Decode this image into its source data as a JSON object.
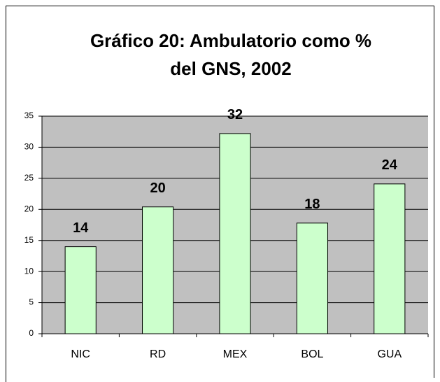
{
  "chart_data": {
    "type": "bar",
    "title": "Gráfico 20: Ambulatorio como % del GNS, 2002",
    "categories": [
      "NIC",
      "RD",
      "MEX",
      "BOL",
      "GUA"
    ],
    "values": [
      14,
      20.4,
      32.2,
      17.8,
      24.1
    ],
    "value_labels": [
      "14",
      "20",
      "32",
      "18",
      "24"
    ],
    "color": "#ccffcc",
    "ylim": [
      0,
      35
    ],
    "yticks": [
      0,
      5,
      10,
      15,
      20,
      25,
      30,
      35
    ],
    "grid": true
  }
}
